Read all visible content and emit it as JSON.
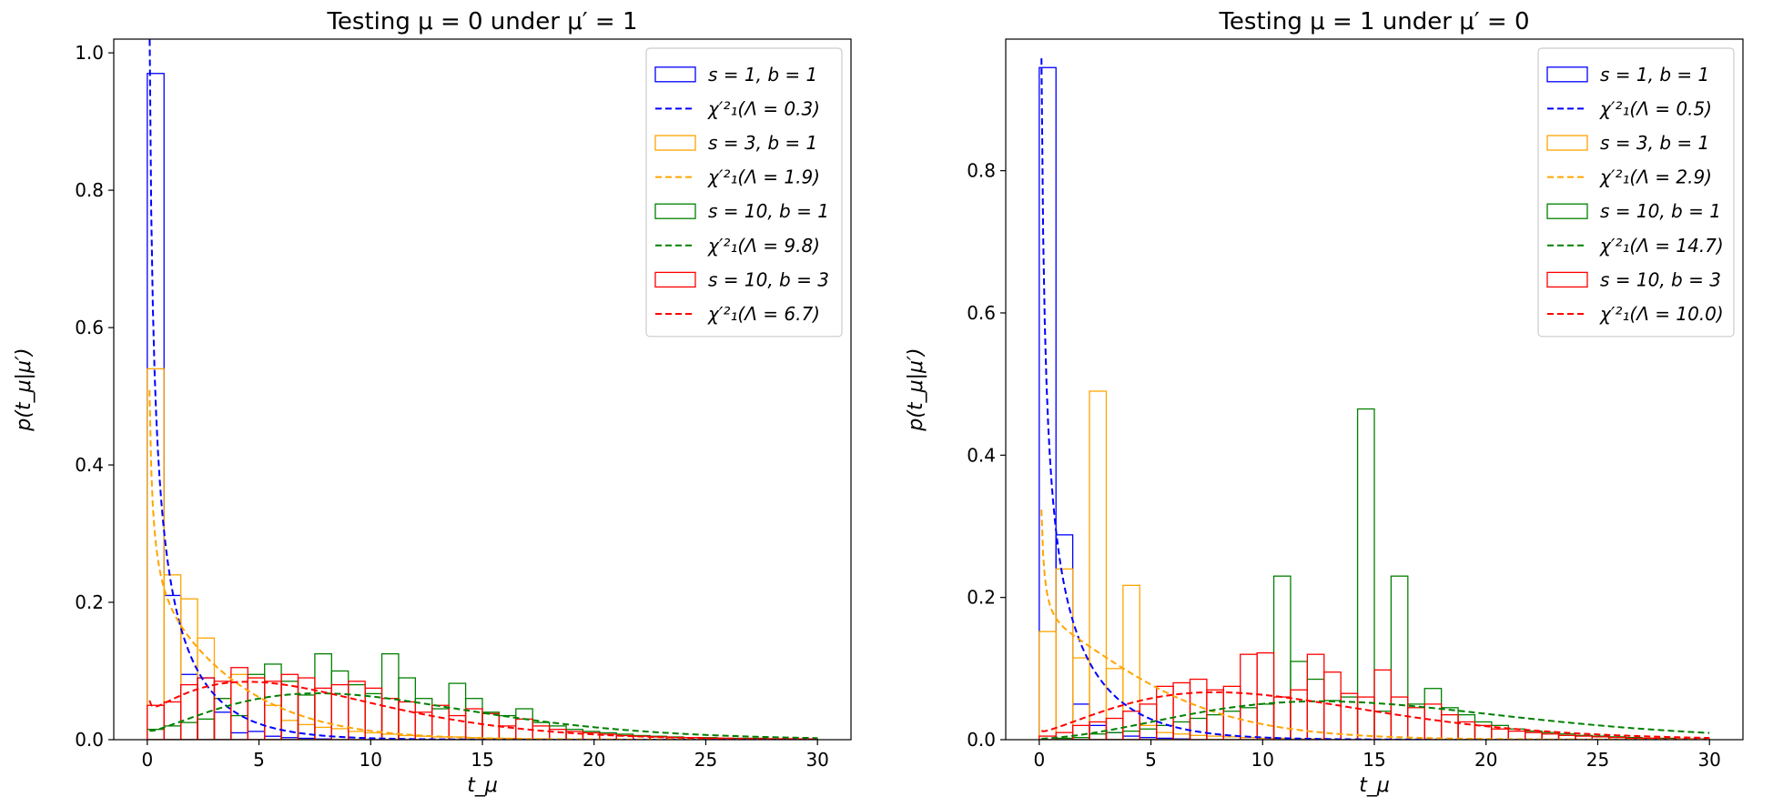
{
  "chart_data": [
    {
      "type": "bar",
      "title": "Testing μ = 0 under μ′ = 1",
      "xlabel": "t_μ",
      "ylabel": "p(t_μ|μ′)",
      "xlim": [
        -1.5,
        31.5
      ],
      "ylim": [
        0,
        1.02
      ],
      "xticks": [
        0,
        5,
        10,
        15,
        20,
        25,
        30
      ],
      "xtick_labels": [
        "0",
        "5",
        "10",
        "15",
        "20",
        "25",
        "30"
      ],
      "yticks": [
        0,
        0.2,
        0.4,
        0.6,
        0.8,
        1.0
      ],
      "ytick_labels": [
        "0.0",
        "0.2",
        "0.4",
        "0.6",
        "0.8",
        "1.0"
      ],
      "bin_width": 0.75,
      "legend_position": "top-right",
      "hist_series": [
        {
          "name": "s = 1, b = 1",
          "color": "#0000ff",
          "bin_start": 0,
          "values": [
            0.97,
            0.21,
            0.095,
            0.09,
            0.04,
            0.01,
            0.012,
            0.005,
            0.003,
            0.002,
            0.001,
            0,
            0,
            0,
            0,
            0,
            0,
            0,
            0,
            0,
            0,
            0,
            0,
            0,
            0,
            0,
            0,
            0,
            0,
            0,
            0,
            0,
            0,
            0,
            0,
            0,
            0,
            0,
            0,
            0
          ]
        },
        {
          "name": "s = 3, b = 1",
          "color": "#ffa500",
          "bin_start": 0,
          "values": [
            0.54,
            0.24,
            0.205,
            0.148,
            0.06,
            0.095,
            0.09,
            0.05,
            0.028,
            0.022,
            0.018,
            0.016,
            0.012,
            0.01,
            0.008,
            0.006,
            0.005,
            0.004,
            0.004,
            0.003,
            0.002,
            0.002,
            0.001,
            0.001,
            0,
            0,
            0,
            0,
            0,
            0,
            0,
            0,
            0,
            0,
            0,
            0,
            0,
            0,
            0,
            0
          ]
        },
        {
          "name": "s = 10, b = 1",
          "color": "#008000",
          "bin_start": 0,
          "values": [
            0.015,
            0.02,
            0.025,
            0.03,
            0.06,
            0.035,
            0.095,
            0.11,
            0.085,
            0.065,
            0.125,
            0.1,
            0.08,
            0.067,
            0.125,
            0.09,
            0.06,
            0.045,
            0.082,
            0.06,
            0.04,
            0.035,
            0.045,
            0.025,
            0.02,
            0.015,
            0.012,
            0.01,
            0.008,
            0.006,
            0.005,
            0.004,
            0.003,
            0.003,
            0.002,
            0.002,
            0.002,
            0.001,
            0.001,
            0.001
          ]
        },
        {
          "name": "s = 10, b = 3",
          "color": "#ff0000",
          "bin_start": 0,
          "values": [
            0.05,
            0.055,
            0.08,
            0.09,
            0.085,
            0.105,
            0.09,
            0.085,
            0.095,
            0.09,
            0.075,
            0.08,
            0.085,
            0.075,
            0.06,
            0.055,
            0.04,
            0.05,
            0.035,
            0.045,
            0.038,
            0.02,
            0.03,
            0.02,
            0.015,
            0.012,
            0.01,
            0.008,
            0.006,
            0.005,
            0.004,
            0.003,
            0.003,
            0.002,
            0.002,
            0.001,
            0.001,
            0.001,
            0.001,
            0.001
          ]
        }
      ],
      "curves": [
        {
          "name": "χ′²₁(Λ = 0.3)",
          "color": "#0000ff",
          "lambda": 0.3
        },
        {
          "name": "χ′²₁(Λ = 1.9)",
          "color": "#ffa500",
          "lambda": 1.9
        },
        {
          "name": "χ′²₁(Λ = 9.8)",
          "color": "#008000",
          "lambda": 9.8
        },
        {
          "name": "χ′²₁(Λ = 6.7)",
          "color": "#ff0000",
          "lambda": 6.7
        }
      ],
      "curve_x_range": [
        0.1,
        30
      ],
      "legend": [
        {
          "label": "s = 1, b = 1",
          "kind": "hist",
          "color": "#0000ff"
        },
        {
          "label": "χ′²₁(Λ = 0.3)",
          "kind": "line",
          "color": "#0000ff"
        },
        {
          "label": "s = 3, b = 1",
          "kind": "hist",
          "color": "#ffa500"
        },
        {
          "label": "χ′²₁(Λ = 1.9)",
          "kind": "line",
          "color": "#ffa500"
        },
        {
          "label": "s = 10, b = 1",
          "kind": "hist",
          "color": "#008000"
        },
        {
          "label": "χ′²₁(Λ = 9.8)",
          "kind": "line",
          "color": "#008000"
        },
        {
          "label": "s = 10, b = 3",
          "kind": "hist",
          "color": "#ff0000"
        },
        {
          "label": "χ′²₁(Λ = 6.7)",
          "kind": "line",
          "color": "#ff0000"
        }
      ]
    },
    {
      "type": "bar",
      "title": "Testing μ = 1 under μ′ = 0",
      "xlabel": "t_μ",
      "ylabel": "p(t_μ|μ′)",
      "xlim": [
        -1.5,
        31.5
      ],
      "ylim": [
        0,
        0.985
      ],
      "xticks": [
        0,
        5,
        10,
        15,
        20,
        25,
        30
      ],
      "xtick_labels": [
        "0",
        "5",
        "10",
        "15",
        "20",
        "25",
        "30"
      ],
      "yticks": [
        0,
        0.2,
        0.4,
        0.6,
        0.8
      ],
      "ytick_labels": [
        "0.0",
        "0.2",
        "0.4",
        "0.6",
        "0.8"
      ],
      "bin_width": 0.75,
      "legend_position": "top-right",
      "hist_series": [
        {
          "name": "s = 1, b = 1",
          "color": "#0000ff",
          "bin_start": 0,
          "values": [
            0.945,
            0.288,
            0.05,
            0.02,
            0.01,
            0.005,
            0.003,
            0.002,
            0.001,
            0,
            0,
            0,
            0,
            0,
            0,
            0,
            0,
            0,
            0,
            0,
            0,
            0,
            0,
            0,
            0,
            0,
            0,
            0,
            0,
            0,
            0,
            0,
            0,
            0,
            0,
            0,
            0,
            0,
            0,
            0
          ]
        },
        {
          "name": "s = 3, b = 1",
          "color": "#ffa500",
          "bin_start": 0,
          "values": [
            0.152,
            0.24,
            0.115,
            0.49,
            0.1,
            0.217,
            0.02,
            0.01,
            0.008,
            0.006,
            0.005,
            0.004,
            0.003,
            0.002,
            0.002,
            0.001,
            0.001,
            0,
            0,
            0,
            0,
            0,
            0,
            0,
            0,
            0,
            0,
            0,
            0,
            0,
            0,
            0,
            0,
            0,
            0,
            0,
            0,
            0,
            0,
            0
          ]
        },
        {
          "name": "s = 10, b = 1",
          "color": "#008000",
          "bin_start": 0,
          "values": [
            0,
            0.002,
            0.003,
            0.008,
            0.01,
            0.012,
            0.015,
            0.02,
            0.025,
            0.03,
            0.035,
            0.04,
            0.045,
            0.05,
            0.23,
            0.11,
            0.085,
            0.055,
            0.06,
            0.465,
            0.04,
            0.23,
            0.05,
            0.072,
            0.045,
            0.035,
            0.025,
            0.02,
            0.015,
            0.012,
            0.01,
            0.008,
            0.006,
            0.005,
            0.004,
            0.003,
            0.002,
            0.002,
            0.001,
            0.001
          ]
        },
        {
          "name": "s = 10, b = 3",
          "color": "#ff0000",
          "bin_start": 0,
          "values": [
            0.005,
            0.01,
            0.02,
            0.025,
            0.03,
            0.04,
            0.05,
            0.075,
            0.08,
            0.085,
            0.07,
            0.075,
            0.12,
            0.122,
            0.06,
            0.07,
            0.12,
            0.095,
            0.065,
            0.06,
            0.098,
            0.06,
            0.045,
            0.05,
            0.035,
            0.025,
            0.02,
            0.015,
            0.012,
            0.01,
            0.008,
            0.006,
            0.005,
            0.004,
            0.003,
            0.002,
            0.002,
            0.001,
            0.001,
            0.001
          ]
        }
      ],
      "curves": [
        {
          "name": "χ′²₁(Λ = 0.5)",
          "color": "#0000ff",
          "lambda": 0.5
        },
        {
          "name": "χ′²₁(Λ = 2.9)",
          "color": "#ffa500",
          "lambda": 2.9
        },
        {
          "name": "χ′²₁(Λ = 14.7)",
          "color": "#008000",
          "lambda": 14.7
        },
        {
          "name": "χ′²₁(Λ = 10.0)",
          "color": "#ff0000",
          "lambda": 10.0
        }
      ],
      "curve_x_range": [
        0.1,
        30
      ],
      "legend": [
        {
          "label": "s = 1, b = 1",
          "kind": "hist",
          "color": "#0000ff"
        },
        {
          "label": "χ′²₁(Λ = 0.5)",
          "kind": "line",
          "color": "#0000ff"
        },
        {
          "label": "s = 3, b = 1",
          "kind": "hist",
          "color": "#ffa500"
        },
        {
          "label": "χ′²₁(Λ = 2.9)",
          "kind": "line",
          "color": "#ffa500"
        },
        {
          "label": "s = 10, b = 1",
          "kind": "hist",
          "color": "#008000"
        },
        {
          "label": "χ′²₁(Λ = 14.7)",
          "kind": "line",
          "color": "#008000"
        },
        {
          "label": "s = 10, b = 3",
          "kind": "hist",
          "color": "#ff0000"
        },
        {
          "label": "χ′²₁(Λ = 10.0)",
          "kind": "line",
          "color": "#ff0000"
        }
      ]
    }
  ]
}
